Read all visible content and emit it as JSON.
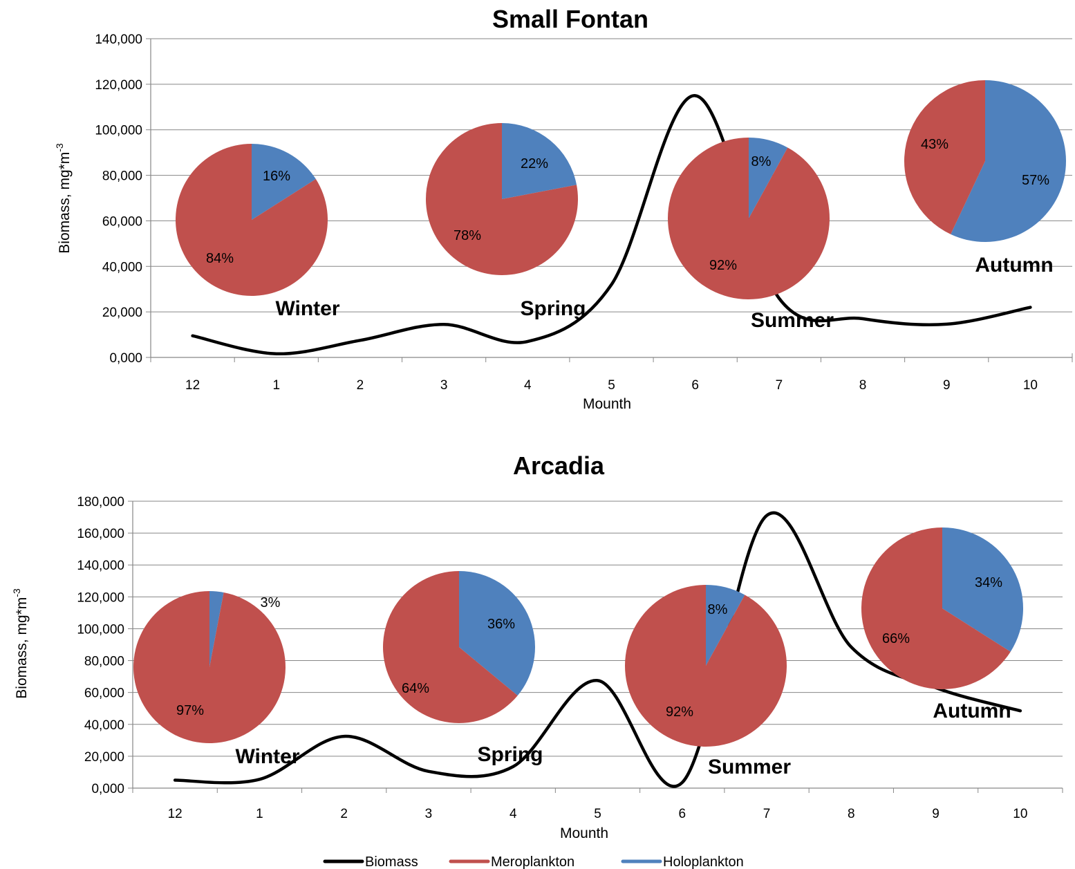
{
  "colors": {
    "biomass": "#000000",
    "meroplankton": "#c0504d",
    "holoplankton": "#4f81bd",
    "grid": "#868686",
    "axis": "#868686"
  },
  "legend": {
    "placement": "bottom",
    "items": [
      {
        "label": "Biomass",
        "color": "#000000"
      },
      {
        "label": "Meroplankton",
        "color": "#c0504d"
      },
      {
        "label": "Holoplankton",
        "color": "#4f81bd"
      }
    ]
  },
  "chart_data": [
    {
      "type": "line",
      "title": "Small Fontan",
      "xlabel": "Mounth",
      "ylabel_main": "Biomass, mg*m",
      "ylabel_sup": "-3",
      "categories": [
        "12",
        "1",
        "2",
        "3",
        "4",
        "5",
        "6",
        "7",
        "8",
        "9",
        "10"
      ],
      "yticks": [
        "0,000",
        "20,000",
        "40,000",
        "60,000",
        "80,000",
        "100,000",
        "120,000",
        "140,000"
      ],
      "ylim": [
        0,
        140000
      ],
      "grid": true,
      "series": [
        {
          "name": "Biomass",
          "values": [
            9500,
            1600,
            7500,
            14500,
            7000,
            32000,
            115000,
            26000,
            17000,
            14600,
            22000
          ]
        }
      ],
      "pies": [
        {
          "label": "Winter",
          "meroplankton": 84,
          "holoplankton": 16,
          "mero_label": "84%",
          "holo_label": "16%"
        },
        {
          "label": "Spring",
          "meroplankton": 78,
          "holoplankton": 22,
          "mero_label": "78%",
          "holo_label": "22%"
        },
        {
          "label": "Summer",
          "meroplankton": 92,
          "holoplankton": 8,
          "mero_label": "92%",
          "holo_label": "8%"
        },
        {
          "label": "Autumn",
          "meroplankton": 43,
          "holoplankton": 57,
          "mero_label": "43%",
          "holo_label": "57%"
        }
      ]
    },
    {
      "type": "line",
      "title": "Arcadia",
      "xlabel": "Mounth",
      "ylabel_main": "Biomass, mg*m",
      "ylabel_sup": "-3",
      "categories": [
        "12",
        "1",
        "2",
        "3",
        "4",
        "5",
        "6",
        "7",
        "8",
        "9",
        "10"
      ],
      "yticks": [
        "0,000",
        "20,000",
        "40,000",
        "60,000",
        "80,000",
        "100,000",
        "120,000",
        "140,000",
        "160,000",
        "180,000"
      ],
      "ylim": [
        0,
        180000
      ],
      "grid": true,
      "series": [
        {
          "name": "Biomass",
          "values": [
            5000,
            5500,
            32500,
            10500,
            13500,
            67500,
            3500,
            171000,
            88500,
            63000,
            48500
          ]
        }
      ],
      "pies": [
        {
          "label": "Winter",
          "meroplankton": 97,
          "holoplankton": 3,
          "mero_label": "97%",
          "holo_label": "3%"
        },
        {
          "label": "Spring",
          "meroplankton": 64,
          "holoplankton": 36,
          "mero_label": "64%",
          "holo_label": "36%"
        },
        {
          "label": "Summer",
          "meroplankton": 92,
          "holoplankton": 8,
          "mero_label": "92%",
          "holo_label": "8%"
        },
        {
          "label": "Autumn",
          "meroplankton": 66,
          "holoplankton": 34,
          "mero_label": "66%",
          "holo_label": "34%"
        }
      ]
    }
  ]
}
